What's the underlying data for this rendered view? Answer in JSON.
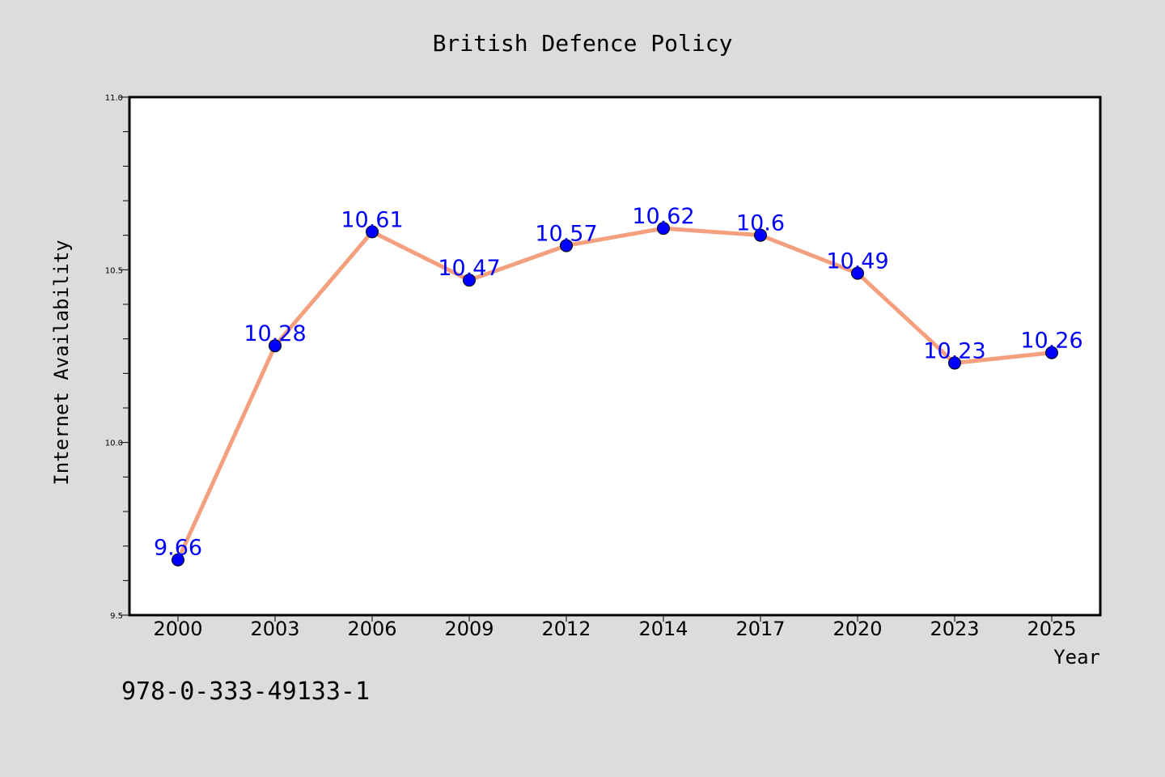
{
  "chart_data": {
    "type": "line",
    "title": "British Defence Policy",
    "xlabel": "Year",
    "ylabel": "Internet Availability",
    "categories": [
      "2000",
      "2003",
      "2006",
      "2009",
      "2012",
      "2014",
      "2017",
      "2020",
      "2023",
      "2025"
    ],
    "series": [
      {
        "values": [
          9.66,
          10.28,
          10.61,
          10.47,
          10.57,
          10.62,
          10.6,
          10.49,
          10.23,
          10.26
        ],
        "labels": [
          "9.66",
          "10.28",
          "10.61",
          "10.47",
          "10.57",
          "10.62",
          "10.6",
          "10.49",
          "10.23",
          "10.26"
        ]
      }
    ],
    "ylim": [
      9.5,
      11.0
    ],
    "yticks": [
      "9.5",
      "10.0",
      "10.5",
      "11.0"
    ],
    "grid": false,
    "legend": "none",
    "colors": {
      "line": "#f4a07e",
      "marker": "#0000ff",
      "data_label": "#0000ff",
      "plot_background": "#ffffff",
      "page_background": "#dcdcdc"
    }
  },
  "footer": {
    "id_text": "978-0-333-49133-1"
  }
}
